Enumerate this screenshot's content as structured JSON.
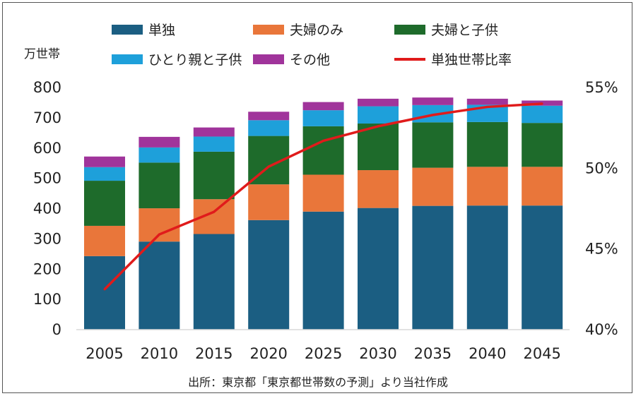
{
  "chart_data": {
    "type": "bar",
    "stacked": true,
    "categories": [
      "2005",
      "2010",
      "2015",
      "2020",
      "2025",
      "2030",
      "2035",
      "2040",
      "2045"
    ],
    "series": [
      {
        "name": "単独",
        "color": "#1b5e82",
        "values": [
          243,
          291,
          316,
          362,
          390,
          402,
          409,
          410,
          410
        ]
      },
      {
        "name": "夫婦のみ",
        "color": "#e9763a",
        "values": [
          100,
          110,
          115,
          118,
          122,
          125,
          126,
          128,
          128
        ]
      },
      {
        "name": "夫婦と子供",
        "color": "#1e6b2b",
        "values": [
          149,
          151,
          157,
          160,
          160,
          154,
          150,
          148,
          145
        ]
      },
      {
        "name": "ひとり親と子供",
        "color": "#1ea0da",
        "values": [
          45,
          50,
          50,
          52,
          53,
          57,
          57,
          57,
          57
        ]
      },
      {
        "name": "その他",
        "color": "#a0349b",
        "values": [
          35,
          35,
          30,
          28,
          27,
          25,
          25,
          20,
          17
        ]
      }
    ],
    "line": {
      "name": "単独世帯比率",
      "color": "#e01b1b",
      "values": [
        42.5,
        45.9,
        47.3,
        50.1,
        51.7,
        52.6,
        53.3,
        53.8,
        54.0
      ]
    },
    "y_left": {
      "label": "万世帯",
      "min": 0,
      "max": 800,
      "ticks": [
        "0",
        "100",
        "200",
        "300",
        "400",
        "500",
        "600",
        "700",
        "800"
      ]
    },
    "y_right": {
      "min": 40,
      "max": 55,
      "ticks": [
        "40%",
        "45%",
        "50%",
        "55%"
      ]
    },
    "legend_position": "top",
    "grid": false,
    "source_note": "出所：東京都「東京都世帯数の予測」より当社作成"
  }
}
